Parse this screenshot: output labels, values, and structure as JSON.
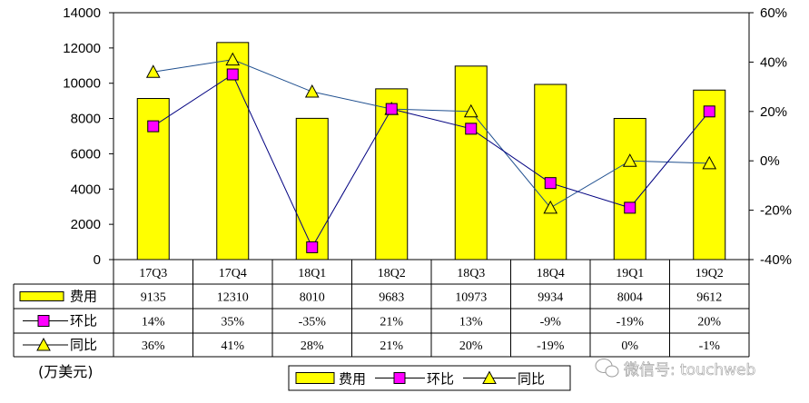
{
  "chart_data": {
    "type": "bar",
    "categories": [
      "17Q3",
      "17Q4",
      "18Q1",
      "18Q2",
      "18Q3",
      "18Q4",
      "19Q1",
      "19Q2"
    ],
    "series": [
      {
        "name": "费用",
        "kind": "bar",
        "axis": "left",
        "color": "#ffff00",
        "values": [
          9135,
          12310,
          8010,
          9683,
          10973,
          9934,
          8004,
          9612
        ]
      },
      {
        "name": "环比",
        "kind": "line",
        "axis": "right",
        "color": "#ff00ff",
        "marker": "square",
        "values": [
          14,
          35,
          -35,
          21,
          13,
          -9,
          -19,
          20
        ]
      },
      {
        "name": "同比",
        "kind": "line",
        "axis": "right",
        "color": "#ffff00",
        "marker": "triangle",
        "values": [
          36,
          41,
          28,
          21,
          20,
          -19,
          0,
          -1
        ]
      }
    ],
    "left_axis": {
      "ylim": [
        0,
        14000
      ],
      "ticks": [
        0,
        2000,
        4000,
        6000,
        8000,
        10000,
        12000,
        14000
      ],
      "unit_label": "(万美元)"
    },
    "right_axis": {
      "ylim": [
        -40,
        60
      ],
      "ticks": [
        -40,
        -20,
        0,
        20,
        40,
        60
      ],
      "tick_labels": [
        "-40%",
        "-20%",
        "0%",
        "20%",
        "40%",
        "60%"
      ]
    },
    "data_table": {
      "rows": [
        {
          "label": "费用",
          "cells": [
            "9135",
            "12310",
            "8010",
            "9683",
            "10973",
            "9934",
            "8004",
            "9612"
          ]
        },
        {
          "label": "环比",
          "cells": [
            "14%",
            "35%",
            "-35%",
            "21%",
            "13%",
            "-9%",
            "-19%",
            "20%"
          ]
        },
        {
          "label": "同比",
          "cells": [
            "36%",
            "41%",
            "28%",
            "21%",
            "20%",
            "-19%",
            "0%",
            "-1%"
          ]
        }
      ]
    },
    "legend": {
      "position": "bottom",
      "items": [
        "费用",
        "环比",
        "同比"
      ]
    },
    "grid": false
  },
  "watermark": {
    "text": "微信号: touchweb",
    "icon": "wechat-icon"
  }
}
